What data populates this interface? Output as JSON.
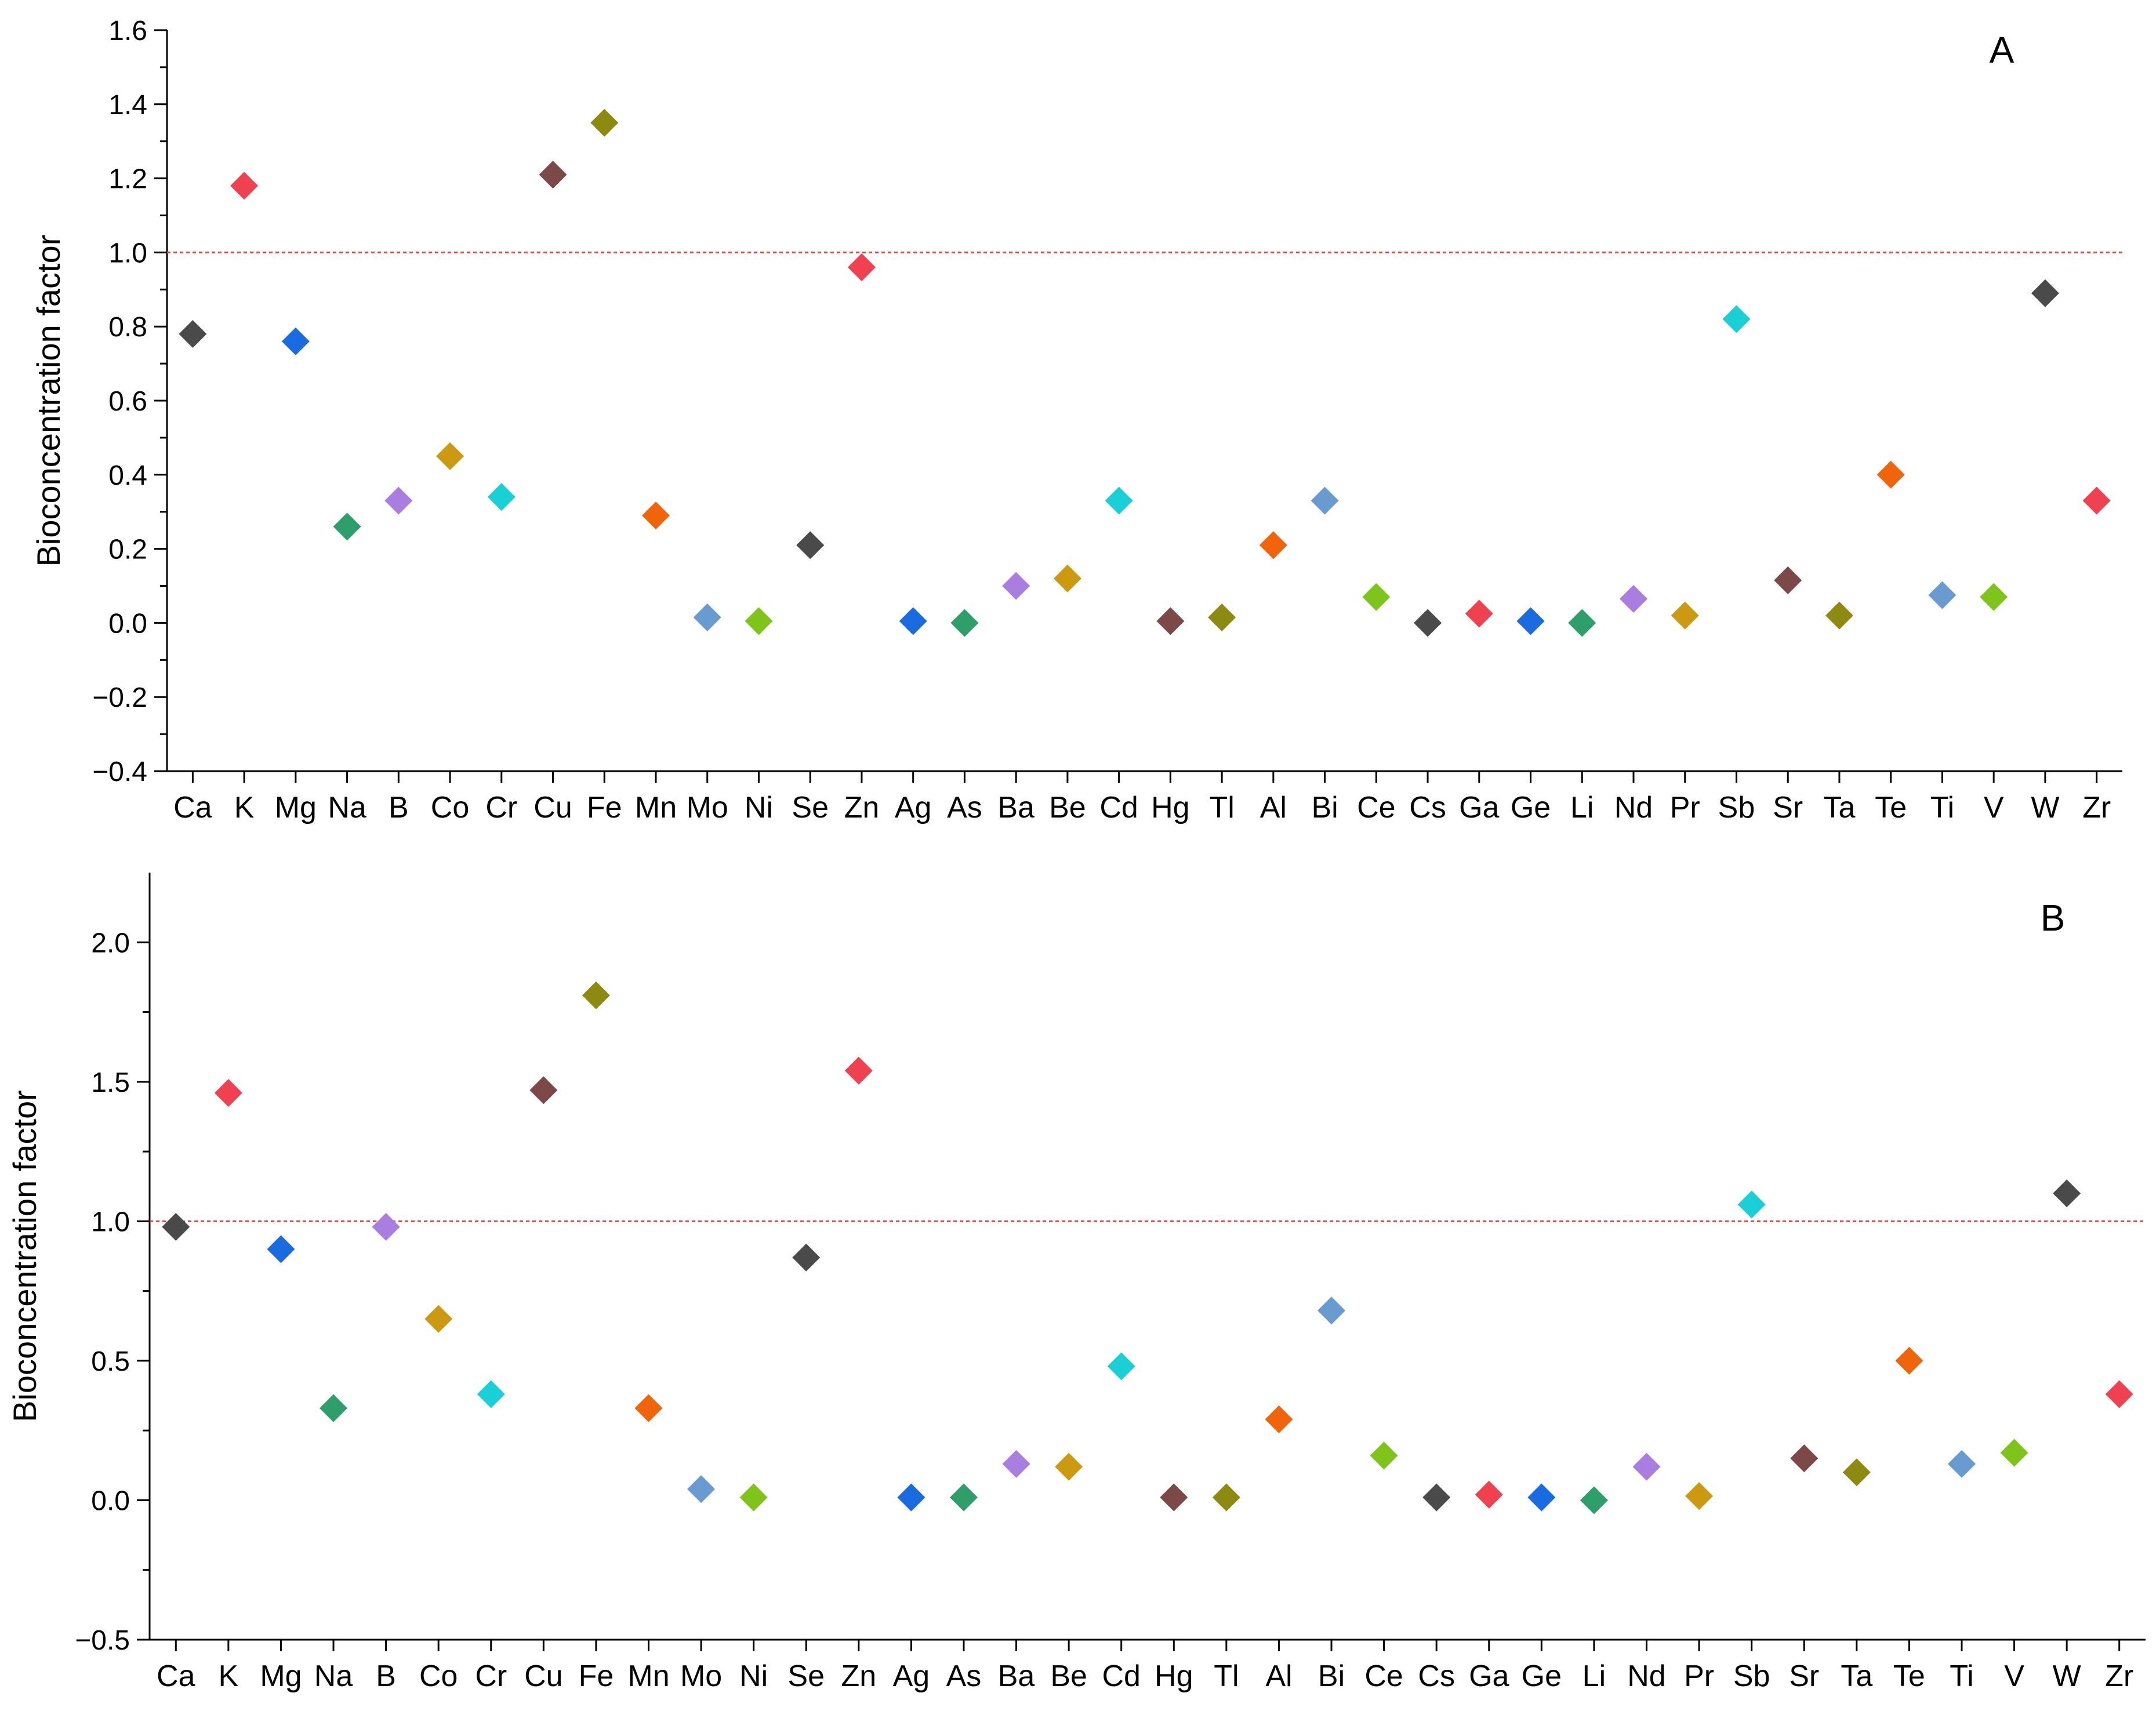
{
  "chart_data": [
    {
      "type": "scatter",
      "panel_label": "A",
      "ylabel": "Bioconcentration factor",
      "xlabel": "",
      "ylim": [
        -0.4,
        1.6
      ],
      "yticks": [
        "−0.4",
        "−0.2",
        "0.0",
        "0.2",
        "0.4",
        "0.6",
        "0.8",
        "1.0",
        "1.2",
        "1.4",
        "1.6"
      ],
      "reference_line": 1.0,
      "categories": [
        "Ca",
        "K",
        "Mg",
        "Na",
        "B",
        "Co",
        "Cr",
        "Cu",
        "Fe",
        "Mn",
        "Mo",
        "Ni",
        "Se",
        "Zn",
        "Ag",
        "As",
        "Ba",
        "Be",
        "Cd",
        "Hg",
        "Tl",
        "Al",
        "Bi",
        "Ce",
        "Cs",
        "Ga",
        "Ge",
        "Li",
        "Nd",
        "Pr",
        "Sb",
        "Sr",
        "Ta",
        "Te",
        "Ti",
        "V",
        "W",
        "Zr"
      ],
      "values": [
        0.78,
        1.18,
        0.76,
        0.26,
        0.33,
        0.45,
        0.34,
        1.21,
        1.35,
        0.29,
        0.015,
        0.005,
        0.21,
        0.96,
        0.005,
        0.0,
        0.1,
        0.12,
        0.33,
        0.005,
        0.015,
        0.21,
        0.33,
        0.07,
        0.0,
        0.025,
        0.005,
        0.0,
        0.065,
        0.02,
        0.82,
        0.115,
        0.02,
        0.4,
        0.075,
        0.07,
        0.89,
        0.33
      ]
    },
    {
      "type": "scatter",
      "panel_label": "B",
      "ylabel": "Bioconcentration factor",
      "xlabel": "",
      "ylim": [
        -0.5,
        2.25
      ],
      "yticks": [
        "−0.5",
        "0.0",
        "0.5",
        "1.0",
        "1.5",
        "2.0"
      ],
      "reference_line": 1.0,
      "categories": [
        "Ca",
        "K",
        "Mg",
        "Na",
        "B",
        "Co",
        "Cr",
        "Cu",
        "Fe",
        "Mn",
        "Mo",
        "Ni",
        "Se",
        "Zn",
        "Ag",
        "As",
        "Ba",
        "Be",
        "Cd",
        "Hg",
        "Tl",
        "Al",
        "Bi",
        "Ce",
        "Cs",
        "Ga",
        "Ge",
        "Li",
        "Nd",
        "Pr",
        "Sb",
        "Sr",
        "Ta",
        "Te",
        "Ti",
        "V",
        "W",
        "Zr"
      ],
      "values": [
        0.98,
        1.46,
        0.9,
        0.33,
        0.98,
        0.65,
        0.38,
        1.47,
        1.81,
        0.33,
        0.04,
        0.01,
        0.87,
        1.54,
        0.01,
        0.01,
        0.13,
        0.12,
        0.48,
        0.01,
        0.01,
        0.29,
        0.68,
        0.16,
        0.01,
        0.02,
        0.01,
        0.0,
        0.12,
        0.015,
        1.06,
        0.15,
        0.1,
        0.5,
        0.13,
        0.17,
        1.1,
        0.38
      ]
    }
  ],
  "colors": {
    "reference_line": "#e8453c",
    "axis": "#000000",
    "markers": [
      "#4a4a4a",
      "#ef4150",
      "#1a6be0",
      "#2e9e6a",
      "#a97ee0",
      "#cc9a10",
      "#1ad0d6",
      "#7d4848",
      "#8c8a10",
      "#f0650c",
      "#6a9bd0",
      "#7ec41a"
    ]
  }
}
